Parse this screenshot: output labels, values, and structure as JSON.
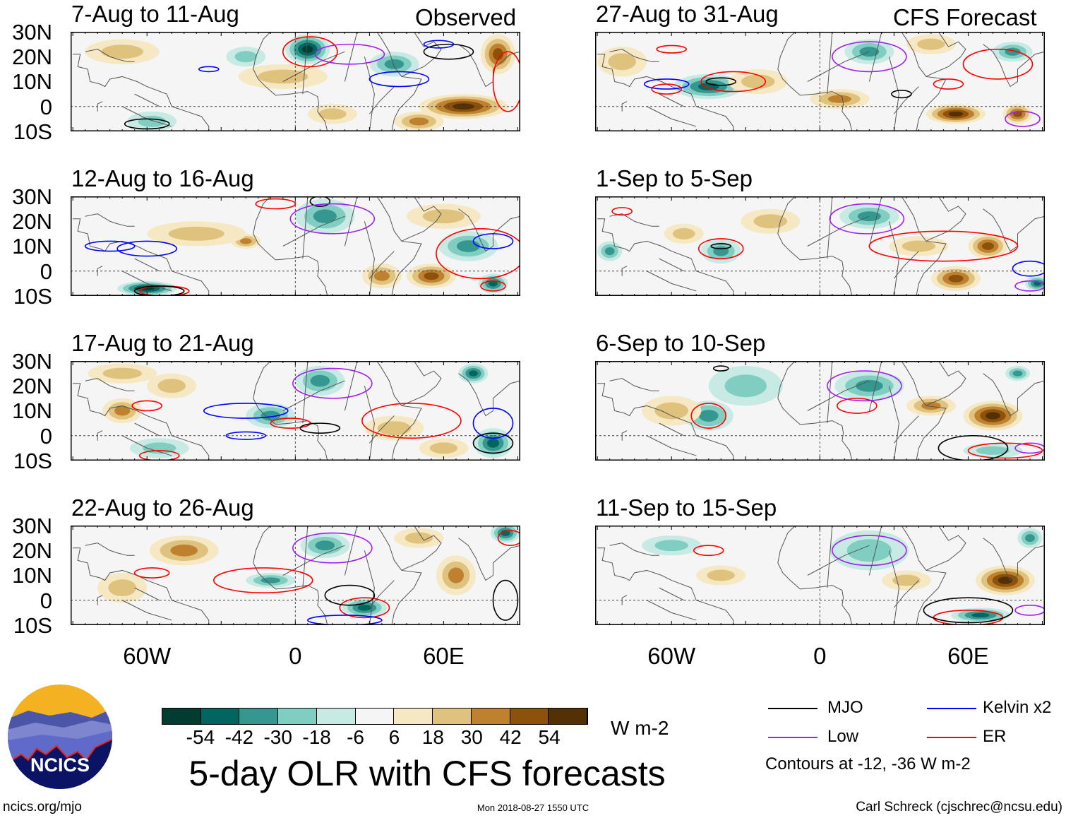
{
  "headers": {
    "observed": "Observed",
    "forecast": "CFS Forecast"
  },
  "lat_labels": [
    "30N",
    "20N",
    "10N",
    "0",
    "10S"
  ],
  "lon_labels": [
    "60W",
    "0",
    "60E"
  ],
  "panels": [
    {
      "title": "7-Aug to 11-Aug",
      "group": "observed",
      "blobs": [
        [
          5,
          23,
          -56,
          9,
          6
        ],
        [
          40,
          17,
          -24,
          10,
          5
        ],
        [
          -20,
          20,
          -10,
          8,
          4
        ],
        [
          68,
          0,
          46,
          18,
          5
        ],
        [
          82,
          21,
          38,
          7,
          8
        ],
        [
          -5,
          12,
          14,
          18,
          5
        ],
        [
          -58,
          -6,
          -16,
          10,
          4
        ],
        [
          50,
          -6,
          22,
          10,
          4
        ],
        [
          -70,
          22,
          16,
          15,
          5
        ],
        [
          15,
          -3,
          12,
          10,
          4
        ]
      ],
      "contours": [
        {
          "type": "mjo",
          "c": [
            -60,
            -7,
            9,
            2
          ]
        },
        {
          "type": "mjo",
          "c": [
            62,
            22,
            10,
            3
          ]
        },
        {
          "type": "kelvin",
          "c": [
            -35,
            15,
            4,
            1
          ]
        },
        {
          "type": "kelvin",
          "c": [
            42,
            11,
            12,
            3
          ]
        },
        {
          "type": "kelvin",
          "c": [
            58,
            25,
            6,
            1.5
          ]
        },
        {
          "type": "er",
          "c": [
            6,
            22,
            11,
            6
          ]
        },
        {
          "type": "er",
          "c": [
            86,
            10,
            6,
            12
          ]
        },
        {
          "type": "low",
          "c": [
            22,
            21,
            14,
            4
          ]
        }
      ]
    },
    {
      "title": "12-Aug to 16-Aug",
      "group": "observed",
      "blobs": [
        [
          12,
          22,
          -30,
          12,
          7
        ],
        [
          70,
          10,
          -28,
          12,
          6
        ],
        [
          80,
          -5,
          -40,
          6,
          4
        ],
        [
          -60,
          -7,
          -44,
          12,
          3
        ],
        [
          -20,
          12,
          26,
          6,
          3
        ],
        [
          35,
          -2,
          30,
          8,
          5
        ],
        [
          55,
          -2,
          34,
          10,
          5
        ],
        [
          -40,
          15,
          14,
          20,
          5
        ],
        [
          60,
          22,
          12,
          15,
          5
        ]
      ],
      "contours": [
        {
          "type": "kelvin",
          "c": [
            -75,
            10,
            10,
            2
          ]
        },
        {
          "type": "kelvin",
          "c": [
            -60,
            9,
            12,
            3
          ]
        },
        {
          "type": "kelvin",
          "c": [
            80,
            12,
            8,
            3
          ]
        },
        {
          "type": "er",
          "c": [
            75,
            7,
            18,
            10
          ]
        },
        {
          "type": "er",
          "c": [
            80,
            -6,
            5,
            2
          ]
        },
        {
          "type": "er",
          "c": [
            -53,
            -8,
            10,
            2
          ]
        },
        {
          "type": "er",
          "c": [
            -8,
            27,
            8,
            2
          ]
        },
        {
          "type": "mjo",
          "c": [
            -55,
            -8,
            10,
            2
          ]
        },
        {
          "type": "mjo",
          "c": [
            10,
            28,
            4,
            2
          ]
        },
        {
          "type": "low",
          "c": [
            15,
            21,
            17,
            6
          ]
        }
      ]
    },
    {
      "title": "17-Aug to 21-Aug",
      "group": "observed",
      "blobs": [
        [
          10,
          22,
          -26,
          10,
          6
        ],
        [
          72,
          25,
          -34,
          6,
          4
        ],
        [
          -10,
          8,
          -22,
          10,
          5
        ],
        [
          80,
          -3,
          -40,
          8,
          6
        ],
        [
          -55,
          -5,
          -18,
          12,
          4
        ],
        [
          -70,
          10,
          26,
          8,
          5
        ],
        [
          -50,
          20,
          18,
          10,
          5
        ],
        [
          40,
          3,
          18,
          12,
          5
        ],
        [
          -70,
          25,
          14,
          14,
          4
        ],
        [
          60,
          -5,
          14,
          10,
          4
        ]
      ],
      "contours": [
        {
          "type": "kelvin",
          "c": [
            -20,
            10,
            17,
            3
          ]
        },
        {
          "type": "kelvin",
          "c": [
            -20,
            0,
            8,
            1.5
          ]
        },
        {
          "type": "kelvin",
          "c": [
            80,
            5,
            8,
            6
          ]
        },
        {
          "type": "er",
          "c": [
            -60,
            12,
            6,
            2
          ]
        },
        {
          "type": "er",
          "c": [
            47,
            6,
            20,
            7
          ]
        },
        {
          "type": "er",
          "c": [
            -2,
            5,
            8,
            2
          ]
        },
        {
          "type": "er",
          "c": [
            -55,
            -8,
            8,
            2
          ]
        },
        {
          "type": "mjo",
          "c": [
            10,
            3,
            8,
            2
          ]
        },
        {
          "type": "mjo",
          "c": [
            80,
            -3,
            8,
            4
          ]
        },
        {
          "type": "low",
          "c": [
            15,
            21,
            16,
            6
          ]
        }
      ]
    },
    {
      "title": "22-Aug to 26-Aug",
      "group": "observed",
      "blobs": [
        [
          12,
          22,
          -26,
          10,
          5
        ],
        [
          85,
          27,
          -40,
          6,
          4
        ],
        [
          -10,
          8,
          -30,
          10,
          3
        ],
        [
          28,
          -3,
          -40,
          9,
          4
        ],
        [
          -45,
          20,
          22,
          14,
          6
        ],
        [
          65,
          10,
          20,
          8,
          8
        ],
        [
          -70,
          5,
          16,
          10,
          6
        ],
        [
          50,
          25,
          14,
          10,
          4
        ]
      ],
      "contours": [
        {
          "type": "er",
          "c": [
            -58,
            11,
            7,
            2
          ]
        },
        {
          "type": "er",
          "c": [
            -13,
            8,
            20,
            5
          ]
        },
        {
          "type": "er",
          "c": [
            28,
            -3,
            10,
            4
          ]
        },
        {
          "type": "er",
          "c": [
            87,
            25,
            5,
            3
          ]
        },
        {
          "type": "mjo",
          "c": [
            22,
            2,
            10,
            4
          ]
        },
        {
          "type": "mjo",
          "c": [
            85,
            0,
            5,
            8
          ]
        },
        {
          "type": "kelvin",
          "c": [
            20,
            -8,
            15,
            2
          ]
        },
        {
          "type": "low",
          "c": [
            15,
            21,
            16,
            6
          ]
        }
      ]
    },
    {
      "title": "27-Aug to 31-Aug",
      "group": "forecast",
      "blobs": [
        [
          -45,
          8,
          -38,
          14,
          5
        ],
        [
          20,
          22,
          -26,
          10,
          5
        ],
        [
          78,
          22,
          -30,
          8,
          4
        ],
        [
          55,
          -3,
          44,
          12,
          4
        ],
        [
          80,
          -3,
          38,
          6,
          4
        ],
        [
          8,
          3,
          26,
          12,
          4
        ],
        [
          -25,
          10,
          14,
          12,
          5
        ],
        [
          -80,
          18,
          14,
          10,
          6
        ],
        [
          45,
          25,
          12,
          10,
          4
        ]
      ],
      "contours": [
        {
          "type": "er",
          "c": [
            -35,
            10,
            13,
            4
          ]
        },
        {
          "type": "er",
          "c": [
            -62,
            7,
            6,
            2
          ]
        },
        {
          "type": "er",
          "c": [
            -60,
            23,
            6,
            1.5
          ]
        },
        {
          "type": "er",
          "c": [
            72,
            17,
            14,
            6
          ]
        },
        {
          "type": "er",
          "c": [
            52,
            9,
            6,
            2
          ]
        },
        {
          "type": "kelvin",
          "c": [
            -62,
            9,
            9,
            2
          ]
        },
        {
          "type": "mjo",
          "c": [
            -40,
            10,
            6,
            1.5
          ]
        },
        {
          "type": "mjo",
          "c": [
            33,
            5,
            4,
            1.5
          ]
        },
        {
          "type": "low",
          "c": [
            20,
            20,
            15,
            6
          ]
        },
        {
          "type": "low",
          "c": [
            82,
            -5,
            7,
            3
          ]
        }
      ]
    },
    {
      "title": "1-Sep to 5-Sep",
      "group": "forecast",
      "blobs": [
        [
          -40,
          8,
          -30,
          8,
          5
        ],
        [
          20,
          22,
          -22,
          12,
          5
        ],
        [
          -85,
          8,
          -26,
          5,
          4
        ],
        [
          88,
          -5,
          -38,
          5,
          3
        ],
        [
          68,
          10,
          36,
          8,
          5
        ],
        [
          55,
          -3,
          38,
          10,
          5
        ],
        [
          -55,
          15,
          18,
          8,
          4
        ],
        [
          -20,
          20,
          14,
          12,
          5
        ],
        [
          40,
          10,
          14,
          12,
          4
        ]
      ],
      "contours": [
        {
          "type": "er",
          "c": [
            -40,
            9,
            9,
            4
          ]
        },
        {
          "type": "er",
          "c": [
            50,
            10,
            30,
            6
          ]
        },
        {
          "type": "er",
          "c": [
            -80,
            24,
            4,
            1.5
          ]
        },
        {
          "type": "mjo",
          "c": [
            -40,
            10,
            4,
            1
          ]
        },
        {
          "type": "low",
          "c": [
            19,
            21,
            15,
            6
          ]
        },
        {
          "type": "kelvin",
          "c": [
            85,
            1,
            7,
            3
          ]
        },
        {
          "type": "low",
          "c": [
            85,
            -6,
            6,
            2
          ]
        }
      ]
    },
    {
      "title": "6-Sep to 10-Sep",
      "group": "forecast",
      "blobs": [
        [
          -45,
          8,
          -22,
          10,
          6
        ],
        [
          -30,
          20,
          -12,
          15,
          8
        ],
        [
          20,
          20,
          -20,
          14,
          6
        ],
        [
          80,
          25,
          -26,
          5,
          3
        ],
        [
          70,
          8,
          56,
          12,
          6
        ],
        [
          45,
          12,
          22,
          10,
          4
        ],
        [
          -60,
          10,
          14,
          12,
          6
        ],
        [
          70,
          -6,
          -14,
          12,
          3
        ]
      ],
      "contours": [
        {
          "type": "er",
          "c": [
            -45,
            8,
            7,
            5
          ]
        },
        {
          "type": "er",
          "c": [
            15,
            12,
            8,
            3
          ]
        },
        {
          "type": "er",
          "c": [
            75,
            -6,
            15,
            3
          ]
        },
        {
          "type": "mjo",
          "c": [
            62,
            -5,
            14,
            5
          ]
        },
        {
          "type": "mjo",
          "c": [
            -40,
            27,
            3,
            1
          ]
        },
        {
          "type": "low",
          "c": [
            18,
            20,
            15,
            6
          ]
        },
        {
          "type": "low",
          "c": [
            85,
            -5,
            6,
            2
          ]
        }
      ]
    },
    {
      "title": "11-Sep to 15-Sep",
      "group": "forecast",
      "blobs": [
        [
          20,
          20,
          -18,
          16,
          8
        ],
        [
          65,
          -6,
          -40,
          12,
          3
        ],
        [
          85,
          25,
          -24,
          5,
          4
        ],
        [
          75,
          8,
          58,
          12,
          6
        ],
        [
          35,
          8,
          18,
          10,
          4
        ],
        [
          -40,
          10,
          12,
          10,
          4
        ],
        [
          -60,
          22,
          -10,
          12,
          4
        ]
      ],
      "contours": [
        {
          "type": "er",
          "c": [
            -45,
            20,
            6,
            2
          ]
        },
        {
          "type": "er",
          "c": [
            60,
            -7,
            14,
            3
          ]
        },
        {
          "type": "mjo",
          "c": [
            60,
            -4,
            18,
            5
          ]
        },
        {
          "type": "low",
          "c": [
            20,
            20,
            15,
            6
          ]
        },
        {
          "type": "low",
          "c": [
            85,
            -4,
            6,
            2
          ]
        }
      ]
    }
  ],
  "colorbar": {
    "ticks": [
      "-54",
      "-42",
      "-30",
      "-18",
      "-6",
      "6",
      "18",
      "30",
      "42",
      "54"
    ],
    "colors": [
      "#003c30",
      "#01665e",
      "#35978f",
      "#80cdc1",
      "#c7eae5",
      "#f5f5f5",
      "#f6e8c3",
      "#dfc27d",
      "#bf812d",
      "#8c510a",
      "#543005"
    ],
    "units": "W m-2"
  },
  "legend": {
    "items": [
      {
        "label": "MJO",
        "color": "#000000"
      },
      {
        "label": "Kelvin x2",
        "color": "#0000ff"
      },
      {
        "label": "Low",
        "color": "#a020f0"
      },
      {
        "label": "ER",
        "color": "#ff0000"
      }
    ],
    "note": "Contours at -12, -36 W m-2"
  },
  "contour_colors": {
    "mjo": "#000000",
    "kelvin": "#0000ff",
    "low": "#a020f0",
    "er": "#ff0000"
  },
  "title": "5-day OLR with CFS forecasts",
  "logo": {
    "text": "NCICS"
  },
  "footer": {
    "url": "ncics.org/mjo",
    "timestamp": "Mon 2018-08-27 1550 UTC",
    "credit": "Carl Schreck (cjschrec@ncsu.edu)"
  }
}
